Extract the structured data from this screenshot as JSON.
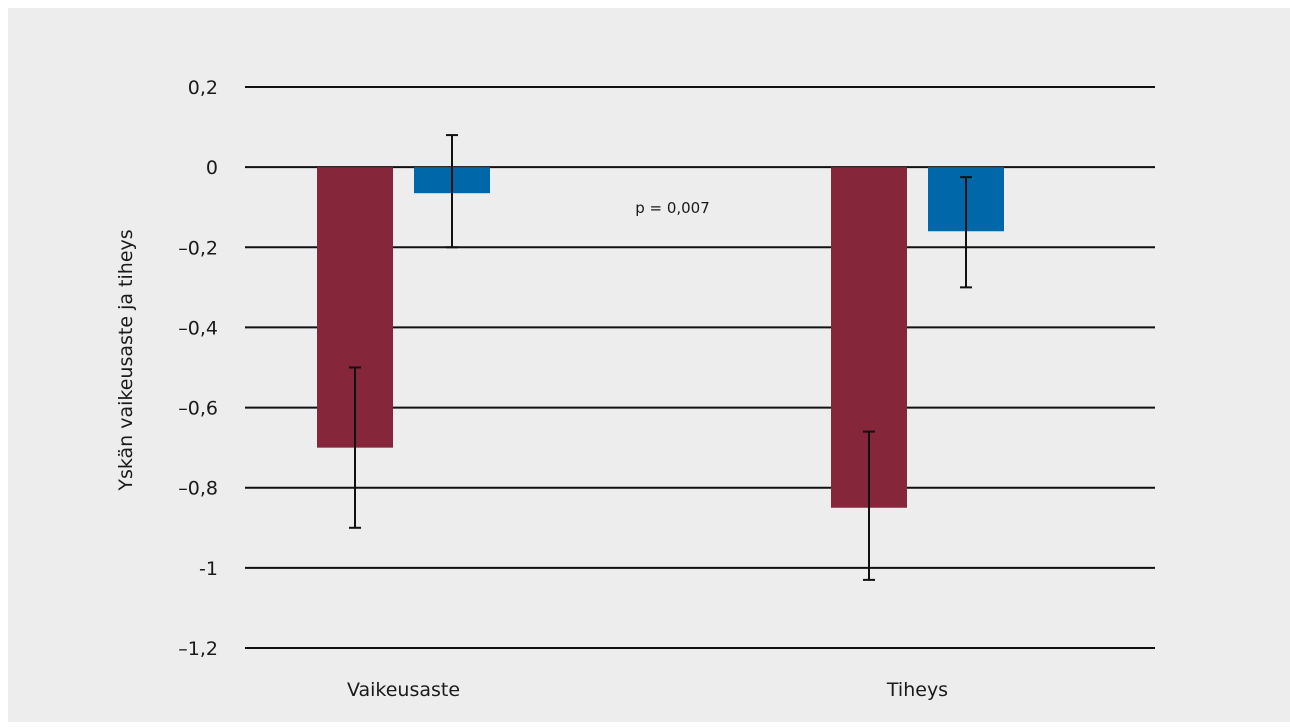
{
  "chart_data": {
    "type": "bar",
    "title": "",
    "xlabel": "",
    "ylabel": "Yskän vaikeusaste ja tiheys",
    "categories": [
      "Vaikeusaste",
      "Tiheys"
    ],
    "yticks": [
      "0,2",
      "0",
      "–0,2",
      "–0,4",
      "–0,6",
      "–0,8",
      "-1",
      "–1,2"
    ],
    "ylim": [
      -1.2,
      0.2
    ],
    "grid": true,
    "legend": "none",
    "series": [
      {
        "color": "#86263a",
        "values": [
          -0.7,
          -0.85
        ],
        "error_low": [
          -0.9,
          -1.03
        ],
        "error_high": [
          -0.5,
          -0.66
        ]
      },
      {
        "color": "#0068a8",
        "values": [
          -0.065,
          -0.16
        ],
        "error_low": [
          -0.2,
          -0.3
        ],
        "error_high": [
          0.08,
          -0.025
        ]
      }
    ],
    "annotations": [
      {
        "text": "p = 0,007",
        "x": 0.5,
        "y": -0.1
      }
    ]
  },
  "colors": {
    "background": "#ededed",
    "gridline": "#111111",
    "errorbar": "#111111"
  }
}
